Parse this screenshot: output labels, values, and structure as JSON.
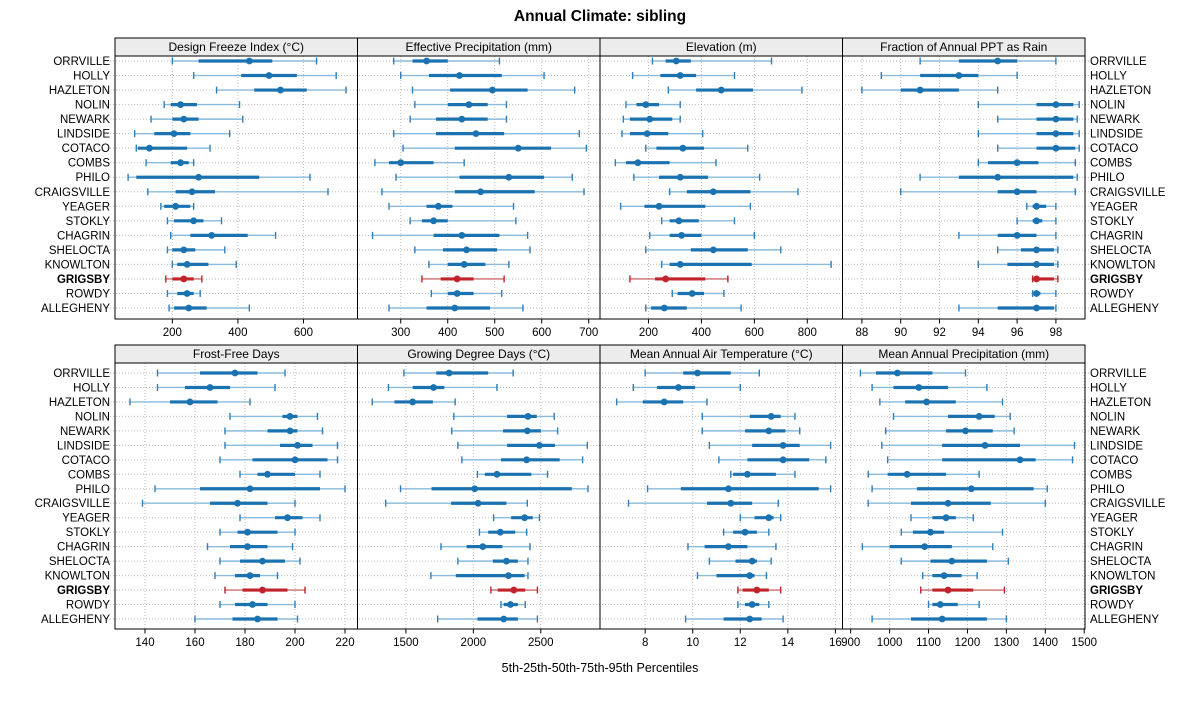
{
  "title": "Annual Climate: sibling",
  "caption": "5th-25th-50th-75th-95th Percentiles",
  "chart_data": {
    "type": "dot-interval-trellis",
    "percentiles": [
      5,
      25,
      50,
      75,
      95
    ],
    "legend_note": "5th-25th-50th-75th-95th Percentiles",
    "stations": [
      "ORRVILLE",
      "HOLLY",
      "HAZLETON",
      "NOLIN",
      "NEWARK",
      "LINDSIDE",
      "COTACO",
      "COMBS",
      "PHILO",
      "CRAIGSVILLE",
      "YEAGER",
      "STOKLY",
      "CHAGRIN",
      "SHELOCTA",
      "KNOWLTON",
      "GRIGSBY",
      "ROWDY",
      "ALLEGHENY"
    ],
    "highlight_station": "GRIGSBY",
    "colors": {
      "point": "#1B72B0",
      "bar": "#1B72B0",
      "whisker": "#8ABBDC",
      "cap": "#2E7EBB",
      "highlight_point": "#C0242A",
      "highlight_bar": "#C0242A",
      "highlight_whisker": "#CC6B6F",
      "highlight_cap": "#C0242A",
      "strip_bg": "#ECECEC",
      "grid": "#BDBDBD",
      "border": "#000000"
    },
    "grid": "dotted",
    "panels": [
      {
        "title": "Design Freeze Index (°C)",
        "row": 0,
        "col": 0,
        "ticks": [
          200,
          400,
          600
        ],
        "xlim": [
          25,
          765
        ],
        "values": [
          [
            200,
            280,
            435,
            505,
            640
          ],
          [
            265,
            410,
            495,
            580,
            700
          ],
          [
            335,
            450,
            530,
            610,
            730
          ],
          [
            175,
            195,
            225,
            275,
            405
          ],
          [
            135,
            200,
            235,
            280,
            415
          ],
          [
            85,
            145,
            205,
            255,
            375
          ],
          [
            90,
            95,
            130,
            245,
            315
          ],
          [
            120,
            195,
            225,
            250,
            265
          ],
          [
            65,
            90,
            280,
            465,
            620
          ],
          [
            125,
            210,
            260,
            330,
            675
          ],
          [
            165,
            175,
            210,
            255,
            265
          ],
          [
            185,
            205,
            265,
            295,
            350
          ],
          [
            195,
            255,
            320,
            430,
            515
          ],
          [
            185,
            200,
            235,
            270,
            360
          ],
          [
            200,
            215,
            245,
            310,
            395
          ],
          [
            180,
            200,
            235,
            265,
            290
          ],
          [
            185,
            215,
            245,
            265,
            285
          ],
          [
            190,
            205,
            250,
            305,
            435
          ]
        ]
      },
      {
        "title": "Effective Precipitation (mm)",
        "row": 0,
        "col": 1,
        "ticks": [
          300,
          400,
          500,
          600,
          700
        ],
        "xlim": [
          208,
          724
        ],
        "values": [
          [
            285,
            325,
            355,
            400,
            510
          ],
          [
            300,
            360,
            425,
            515,
            605
          ],
          [
            325,
            405,
            495,
            570,
            670
          ],
          [
            330,
            400,
            445,
            485,
            525
          ],
          [
            320,
            375,
            430,
            485,
            525
          ],
          [
            285,
            375,
            460,
            520,
            680
          ],
          [
            305,
            415,
            550,
            620,
            695
          ],
          [
            245,
            275,
            300,
            370,
            435
          ],
          [
            290,
            425,
            530,
            605,
            665
          ],
          [
            260,
            415,
            470,
            585,
            690
          ],
          [
            275,
            355,
            380,
            410,
            540
          ],
          [
            320,
            345,
            370,
            400,
            545
          ],
          [
            240,
            370,
            430,
            510,
            570
          ],
          [
            330,
            390,
            440,
            505,
            575
          ],
          [
            360,
            400,
            435,
            480,
            530
          ],
          [
            345,
            385,
            420,
            455,
            520
          ],
          [
            365,
            400,
            420,
            455,
            515
          ],
          [
            275,
            355,
            415,
            490,
            560
          ]
        ]
      },
      {
        "title": "Elevation (m)",
        "row": 0,
        "col": 2,
        "ticks": [
          200,
          400,
          600,
          800
        ],
        "xlim": [
          17,
          933
        ],
        "values": [
          [
            215,
            265,
            305,
            360,
            665
          ],
          [
            140,
            245,
            320,
            380,
            525
          ],
          [
            275,
            380,
            475,
            595,
            780
          ],
          [
            115,
            155,
            190,
            240,
            320
          ],
          [
            105,
            130,
            205,
            290,
            320
          ],
          [
            100,
            130,
            195,
            275,
            405
          ],
          [
            190,
            230,
            330,
            410,
            575
          ],
          [
            75,
            115,
            160,
            280,
            455
          ],
          [
            145,
            240,
            320,
            425,
            620
          ],
          [
            280,
            345,
            445,
            585,
            765
          ],
          [
            95,
            185,
            240,
            415,
            585
          ],
          [
            250,
            280,
            315,
            390,
            525
          ],
          [
            205,
            280,
            325,
            400,
            600
          ],
          [
            190,
            360,
            445,
            575,
            700
          ],
          [
            250,
            280,
            320,
            590,
            890
          ],
          [
            130,
            225,
            265,
            415,
            500
          ],
          [
            290,
            310,
            365,
            410,
            485
          ],
          [
            190,
            210,
            260,
            345,
            550
          ]
        ]
      },
      {
        "title": "Fraction of Annual PPT as Rain",
        "row": 0,
        "col": 3,
        "ticks": [
          88,
          90,
          92,
          94,
          96,
          98
        ],
        "xlim": [
          87.0,
          99.5
        ],
        "values": [
          [
            91,
            93,
            95,
            96,
            98
          ],
          [
            89,
            91,
            93,
            94,
            96
          ],
          [
            88,
            90,
            91,
            93,
            95
          ],
          [
            94,
            97,
            98,
            98.9,
            99.2
          ],
          [
            95,
            97,
            98,
            98.9,
            99.1
          ],
          [
            94,
            97,
            98,
            98.9,
            99.2
          ],
          [
            95,
            97,
            98,
            99,
            99.2
          ],
          [
            94,
            94.5,
            96,
            97.1,
            99
          ],
          [
            91,
            93,
            95,
            98.9,
            99.1
          ],
          [
            90,
            95,
            96,
            97,
            99
          ],
          [
            96.5,
            96.8,
            97,
            97.5,
            98
          ],
          [
            96,
            96.8,
            97,
            97.3,
            98
          ],
          [
            93,
            95,
            96,
            97,
            98
          ],
          [
            95,
            96.2,
            97,
            97.9,
            98.1
          ],
          [
            94,
            95.5,
            97,
            97.9,
            98.1
          ],
          [
            96.8,
            96.9,
            97,
            97.9,
            98.1
          ],
          [
            96.8,
            96.9,
            97,
            97.2,
            98
          ],
          [
            93,
            95,
            97,
            97.9,
            98
          ]
        ]
      },
      {
        "title": "Frost-Free Days",
        "row": 1,
        "col": 0,
        "ticks": [
          140,
          160,
          180,
          200,
          220
        ],
        "xlim": [
          128,
          225
        ],
        "values": [
          [
            145,
            162,
            176,
            185,
            196
          ],
          [
            145,
            156,
            166,
            174,
            192
          ],
          [
            134,
            150,
            158,
            169,
            182
          ],
          [
            174,
            195,
            198,
            201,
            209
          ],
          [
            172,
            189,
            198,
            201,
            211
          ],
          [
            172,
            194,
            201,
            207,
            217
          ],
          [
            170,
            183,
            200,
            213,
            217
          ],
          [
            178,
            185,
            189,
            200,
            210
          ],
          [
            144,
            162,
            182,
            210,
            220
          ],
          [
            139,
            166,
            177,
            189,
            200
          ],
          [
            178,
            192,
            197,
            203,
            210
          ],
          [
            170,
            177,
            181,
            193,
            200
          ],
          [
            165,
            174,
            181,
            189,
            199
          ],
          [
            170,
            178,
            187,
            196,
            202
          ],
          [
            168,
            176,
            182,
            186,
            193
          ],
          [
            172,
            179,
            187,
            197,
            204
          ],
          [
            170,
            176,
            183,
            189,
            200
          ],
          [
            160,
            175,
            185,
            193,
            201
          ]
        ]
      },
      {
        "title": "Growing Degree Days (°C)",
        "row": 1,
        "col": 1,
        "ticks": [
          1500,
          2000,
          2500
        ],
        "xlim": [
          1141,
          2939
        ],
        "values": [
          [
            1485,
            1725,
            1820,
            2110,
            2295
          ],
          [
            1370,
            1550,
            1705,
            1785,
            2175
          ],
          [
            1250,
            1415,
            1550,
            1700,
            1865
          ],
          [
            1855,
            2250,
            2405,
            2470,
            2600
          ],
          [
            1840,
            2220,
            2400,
            2500,
            2625
          ],
          [
            1885,
            2250,
            2490,
            2605,
            2845
          ],
          [
            1915,
            2205,
            2395,
            2640,
            2810
          ],
          [
            2030,
            2085,
            2175,
            2430,
            2550
          ],
          [
            1460,
            1690,
            2010,
            2730,
            2850
          ],
          [
            1350,
            1835,
            2035,
            2245,
            2400
          ],
          [
            2150,
            2280,
            2380,
            2440,
            2490
          ],
          [
            2045,
            2110,
            2200,
            2310,
            2395
          ],
          [
            1760,
            1950,
            2070,
            2215,
            2420
          ],
          [
            1885,
            2145,
            2245,
            2330,
            2405
          ],
          [
            1685,
            1870,
            2260,
            2380,
            2405
          ],
          [
            2130,
            2180,
            2300,
            2385,
            2475
          ],
          [
            2205,
            2225,
            2275,
            2330,
            2385
          ],
          [
            1735,
            2030,
            2225,
            2330,
            2475
          ]
        ]
      },
      {
        "title": "Mean Annual Air Temperature (°C)",
        "row": 1,
        "col": 2,
        "ticks": [
          8,
          10,
          12,
          14,
          16
        ],
        "xlim": [
          6.1,
          16.3
        ],
        "values": [
          [
            8.0,
            9.6,
            10.2,
            11.6,
            12.8
          ],
          [
            7.5,
            8.5,
            9.4,
            10.1,
            12.0
          ],
          [
            6.8,
            7.9,
            8.8,
            9.6,
            10.6
          ],
          [
            10.4,
            12.4,
            13.3,
            13.7,
            14.3
          ],
          [
            10.4,
            12.2,
            13.2,
            13.9,
            14.5
          ],
          [
            10.7,
            12.5,
            13.8,
            14.5,
            15.8
          ],
          [
            11.1,
            12.3,
            13.8,
            14.9,
            15.6
          ],
          [
            11.6,
            11.7,
            12.3,
            13.5,
            14.3
          ],
          [
            8.1,
            9.5,
            11.5,
            15.3,
            15.8
          ],
          [
            7.3,
            10.6,
            11.6,
            12.5,
            13.6
          ],
          [
            12.0,
            12.6,
            13.2,
            13.4,
            13.7
          ],
          [
            11.3,
            11.7,
            12.2,
            12.7,
            13.2
          ],
          [
            9.8,
            10.5,
            11.5,
            12.3,
            13.5
          ],
          [
            10.7,
            11.8,
            12.5,
            12.7,
            13.3
          ],
          [
            10.2,
            11.0,
            12.4,
            12.6,
            13.1
          ],
          [
            11.9,
            12.1,
            12.7,
            13.2,
            13.7
          ],
          [
            11.9,
            12.2,
            12.5,
            12.8,
            13.2
          ],
          [
            9.7,
            11.3,
            12.4,
            12.9,
            13.8
          ]
        ]
      },
      {
        "title": "Mean Annual Precipitation (mm)",
        "row": 1,
        "col": 3,
        "ticks": [
          900,
          1000,
          1100,
          1200,
          1300,
          1400,
          1500
        ],
        "xlim": [
          879,
          1502
        ],
        "values": [
          [
            925,
            965,
            1020,
            1110,
            1195
          ],
          [
            955,
            1010,
            1075,
            1150,
            1250
          ],
          [
            975,
            1040,
            1095,
            1170,
            1290
          ],
          [
            1010,
            1150,
            1230,
            1270,
            1310
          ],
          [
            990,
            1145,
            1195,
            1265,
            1320
          ],
          [
            980,
            1135,
            1245,
            1335,
            1475
          ],
          [
            995,
            1135,
            1335,
            1375,
            1470
          ],
          [
            945,
            995,
            1045,
            1145,
            1230
          ],
          [
            955,
            1070,
            1210,
            1370,
            1405
          ],
          [
            945,
            1055,
            1150,
            1260,
            1400
          ],
          [
            1055,
            1110,
            1145,
            1170,
            1215
          ],
          [
            1030,
            1060,
            1105,
            1140,
            1290
          ],
          [
            930,
            1000,
            1090,
            1160,
            1265
          ],
          [
            1030,
            1105,
            1160,
            1250,
            1305
          ],
          [
            1085,
            1110,
            1140,
            1185,
            1225
          ],
          [
            1080,
            1110,
            1150,
            1215,
            1295
          ],
          [
            1100,
            1110,
            1130,
            1175,
            1230
          ],
          [
            955,
            1055,
            1135,
            1250,
            1300
          ]
        ]
      }
    ]
  }
}
